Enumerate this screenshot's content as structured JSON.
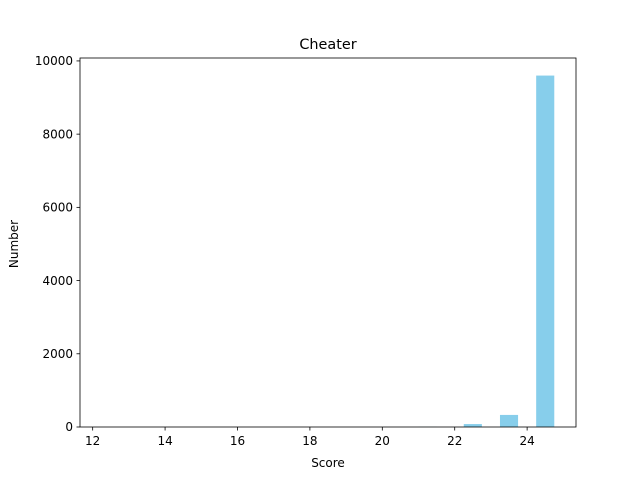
{
  "chart_data": {
    "type": "bar",
    "title": "Cheater",
    "xlabel": "Score",
    "ylabel": "Number",
    "xlim": [
      11.65,
      25.35
    ],
    "ylim": [
      0,
      10080
    ],
    "bar_width": 0.5,
    "bar_color": "#87ceeb",
    "x": [
      12.25,
      13.25,
      14.25,
      15.25,
      16.25,
      17.25,
      18.25,
      19.25,
      20.25,
      21.25,
      22.5,
      23.5,
      24.5
    ],
    "values": [
      0,
      0,
      0,
      0,
      0,
      0,
      0,
      0,
      0,
      5,
      80,
      330,
      9600
    ],
    "xticks": [
      12,
      14,
      16,
      18,
      20,
      22,
      24
    ],
    "yticks": [
      0,
      2000,
      4000,
      6000,
      8000,
      10000
    ],
    "grid": false,
    "legend": "none"
  }
}
